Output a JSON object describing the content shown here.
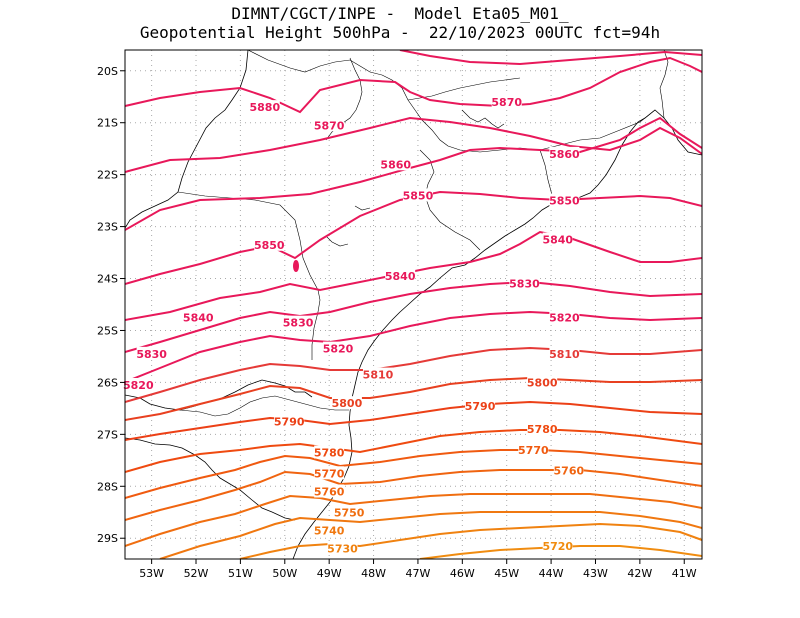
{
  "title": {
    "line1": "DIMNT/CGCT/INPE -  Model Eta05_M01_",
    "line2": "Geopotential Height 500hPa -  22/10/2023 00UTC fct=94h"
  },
  "map": {
    "lon_range": [
      -53.6,
      -40.6
    ],
    "lat_range": [
      -19.6,
      -29.4
    ],
    "x_ticks": [
      {
        "lon": -53,
        "label": "53W"
      },
      {
        "lon": -52,
        "label": "52W"
      },
      {
        "lon": -51,
        "label": "51W"
      },
      {
        "lon": -50,
        "label": "50W"
      },
      {
        "lon": -49,
        "label": "49W"
      },
      {
        "lon": -48,
        "label": "48W"
      },
      {
        "lon": -47,
        "label": "47W"
      },
      {
        "lon": -46,
        "label": "46W"
      },
      {
        "lon": -45,
        "label": "45W"
      },
      {
        "lon": -44,
        "label": "44W"
      },
      {
        "lon": -43,
        "label": "43W"
      },
      {
        "lon": -42,
        "label": "42W"
      },
      {
        "lon": -41,
        "label": "41W"
      }
    ],
    "y_ticks": [
      {
        "lat": -20,
        "label": "20S"
      },
      {
        "lat": -21,
        "label": "21S"
      },
      {
        "lat": -22,
        "label": "22S"
      },
      {
        "lat": -23,
        "label": "23S"
      },
      {
        "lat": -24,
        "label": "24S"
      },
      {
        "lat": -25,
        "label": "25S"
      },
      {
        "lat": -26,
        "label": "26S"
      },
      {
        "lat": -27,
        "label": "27S"
      },
      {
        "lat": -28,
        "label": "28S"
      },
      {
        "lat": -29,
        "label": "29S"
      }
    ],
    "contour_labels": [
      {
        "text": "5880",
        "lon": -50.45,
        "lat": -20.7,
        "color": "#e8185a"
      },
      {
        "text": "5870",
        "lon": -49.0,
        "lat": -21.05,
        "color": "#e8185a"
      },
      {
        "text": "5870",
        "lon": -45.0,
        "lat": -20.6,
        "color": "#e8185a"
      },
      {
        "text": "5860",
        "lon": -47.5,
        "lat": -21.8,
        "color": "#e8185a"
      },
      {
        "text": "5860",
        "lon": -43.7,
        "lat": -21.6,
        "color": "#e8185a"
      },
      {
        "text": "5850",
        "lon": -47.0,
        "lat": -22.4,
        "color": "#e8185a"
      },
      {
        "text": "5850",
        "lon": -43.7,
        "lat": -22.5,
        "color": "#e8185a"
      },
      {
        "text": "5850",
        "lon": -50.35,
        "lat": -23.35,
        "color": "#e8185a"
      },
      {
        "text": "5840",
        "lon": -47.4,
        "lat": -23.95,
        "color": "#e8185a"
      },
      {
        "text": "5840",
        "lon": -43.85,
        "lat": -23.25,
        "color": "#e8185a"
      },
      {
        "text": "5840",
        "lon": -51.95,
        "lat": -24.75,
        "color": "#e8185a"
      },
      {
        "text": "5830",
        "lon": -44.6,
        "lat": -24.1,
        "color": "#e8185a"
      },
      {
        "text": "5830",
        "lon": -49.7,
        "lat": -24.85,
        "color": "#e8185a"
      },
      {
        "text": "5830",
        "lon": -53.0,
        "lat": -25.45,
        "color": "#e8185a"
      },
      {
        "text": "5820",
        "lon": -43.7,
        "lat": -24.75,
        "color": "#e8185a"
      },
      {
        "text": "5820",
        "lon": -48.8,
        "lat": -25.35,
        "color": "#e8185a"
      },
      {
        "text": "5820",
        "lon": -53.3,
        "lat": -26.05,
        "color": "#e8185a"
      },
      {
        "text": "5810",
        "lon": -43.7,
        "lat": -25.45,
        "color": "#e53a37"
      },
      {
        "text": "5810",
        "lon": -47.9,
        "lat": -25.85,
        "color": "#e53a37"
      },
      {
        "text": "5800",
        "lon": -44.2,
        "lat": -26.0,
        "color": "#e84020"
      },
      {
        "text": "5800",
        "lon": -48.6,
        "lat": -26.4,
        "color": "#e84020"
      },
      {
        "text": "5790",
        "lon": -45.6,
        "lat": -26.45,
        "color": "#ec4016"
      },
      {
        "text": "5790",
        "lon": -49.9,
        "lat": -26.75,
        "color": "#ec4016"
      },
      {
        "text": "5780",
        "lon": -44.2,
        "lat": -26.9,
        "color": "#ef4a10"
      },
      {
        "text": "5780",
        "lon": -49.0,
        "lat": -27.35,
        "color": "#ef4a10"
      },
      {
        "text": "5770",
        "lon": -44.4,
        "lat": -27.3,
        "color": "#f05a10"
      },
      {
        "text": "5770",
        "lon": -49.0,
        "lat": -27.75,
        "color": "#f05a10"
      },
      {
        "text": "5760",
        "lon": -43.6,
        "lat": -27.7,
        "color": "#f06410"
      },
      {
        "text": "5760",
        "lon": -49.0,
        "lat": -28.1,
        "color": "#f06410"
      },
      {
        "text": "5750",
        "lon": -48.55,
        "lat": -28.5,
        "color": "#f06e10"
      },
      {
        "text": "5740",
        "lon": -49.0,
        "lat": -28.85,
        "color": "#f07810"
      },
      {
        "text": "5730",
        "lon": -48.7,
        "lat": -29.2,
        "color": "#f08210"
      },
      {
        "text": "5720",
        "lon": -43.85,
        "lat": -29.15,
        "color": "#f08c10"
      }
    ]
  }
}
